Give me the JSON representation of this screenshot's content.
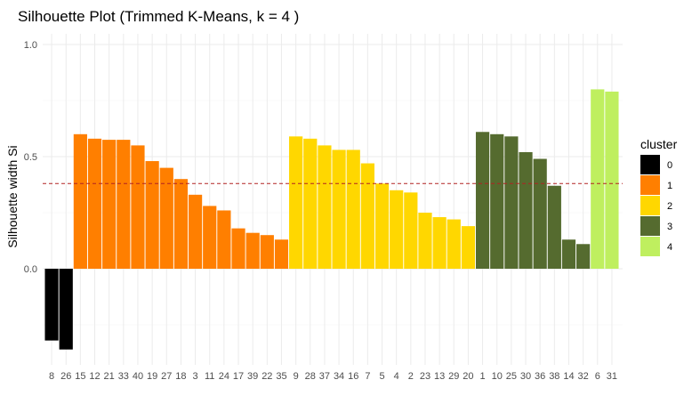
{
  "chart_data": {
    "type": "bar",
    "title": "Silhouette Plot (Trimmed K-Means, k = 4 )",
    "xlabel": "",
    "ylabel": "Silhouette width Si",
    "ylim": [
      -0.42,
      1.05
    ],
    "yticks": [
      {
        "value": 0.0,
        "label": "0.0"
      },
      {
        "value": 0.5,
        "label": "0.5"
      },
      {
        "value": 1.0,
        "label": "1.0"
      }
    ],
    "grid": true,
    "legend": {
      "title": "cluster",
      "placement": "right",
      "items": [
        {
          "label": "0",
          "color": "#000000"
        },
        {
          "label": "1",
          "color": "#ff7f00"
        },
        {
          "label": "2",
          "color": "#ffd700"
        },
        {
          "label": "3",
          "color": "#556b2f"
        },
        {
          "label": "4",
          "color": "#bfef5f"
        }
      ]
    },
    "reference_line": {
      "value": 0.38,
      "style": "dashed",
      "color": "#b22222"
    },
    "categories": [
      "8",
      "26",
      "15",
      "12",
      "21",
      "33",
      "40",
      "19",
      "27",
      "18",
      "3",
      "11",
      "24",
      "17",
      "39",
      "22",
      "35",
      "9",
      "28",
      "37",
      "34",
      "16",
      "7",
      "5",
      "4",
      "2",
      "23",
      "13",
      "29",
      "20",
      "1",
      "10",
      "25",
      "30",
      "36",
      "38",
      "14",
      "32",
      "6",
      "31"
    ],
    "values": [
      -0.32,
      -0.36,
      0.6,
      0.58,
      0.575,
      0.575,
      0.55,
      0.48,
      0.45,
      0.4,
      0.33,
      0.28,
      0.26,
      0.18,
      0.16,
      0.15,
      0.13,
      0.59,
      0.58,
      0.55,
      0.53,
      0.53,
      0.47,
      0.38,
      0.35,
      0.34,
      0.25,
      0.23,
      0.22,
      0.19,
      0.61,
      0.6,
      0.59,
      0.52,
      0.49,
      0.37,
      0.13,
      0.11,
      0.8,
      0.79
    ],
    "clusters": [
      "0",
      "0",
      "1",
      "1",
      "1",
      "1",
      "1",
      "1",
      "1",
      "1",
      "1",
      "1",
      "1",
      "1",
      "1",
      "1",
      "1",
      "2",
      "2",
      "2",
      "2",
      "2",
      "2",
      "2",
      "2",
      "2",
      "2",
      "2",
      "2",
      "2",
      "3",
      "3",
      "3",
      "3",
      "3",
      "3",
      "3",
      "3",
      "4",
      "4"
    ]
  }
}
